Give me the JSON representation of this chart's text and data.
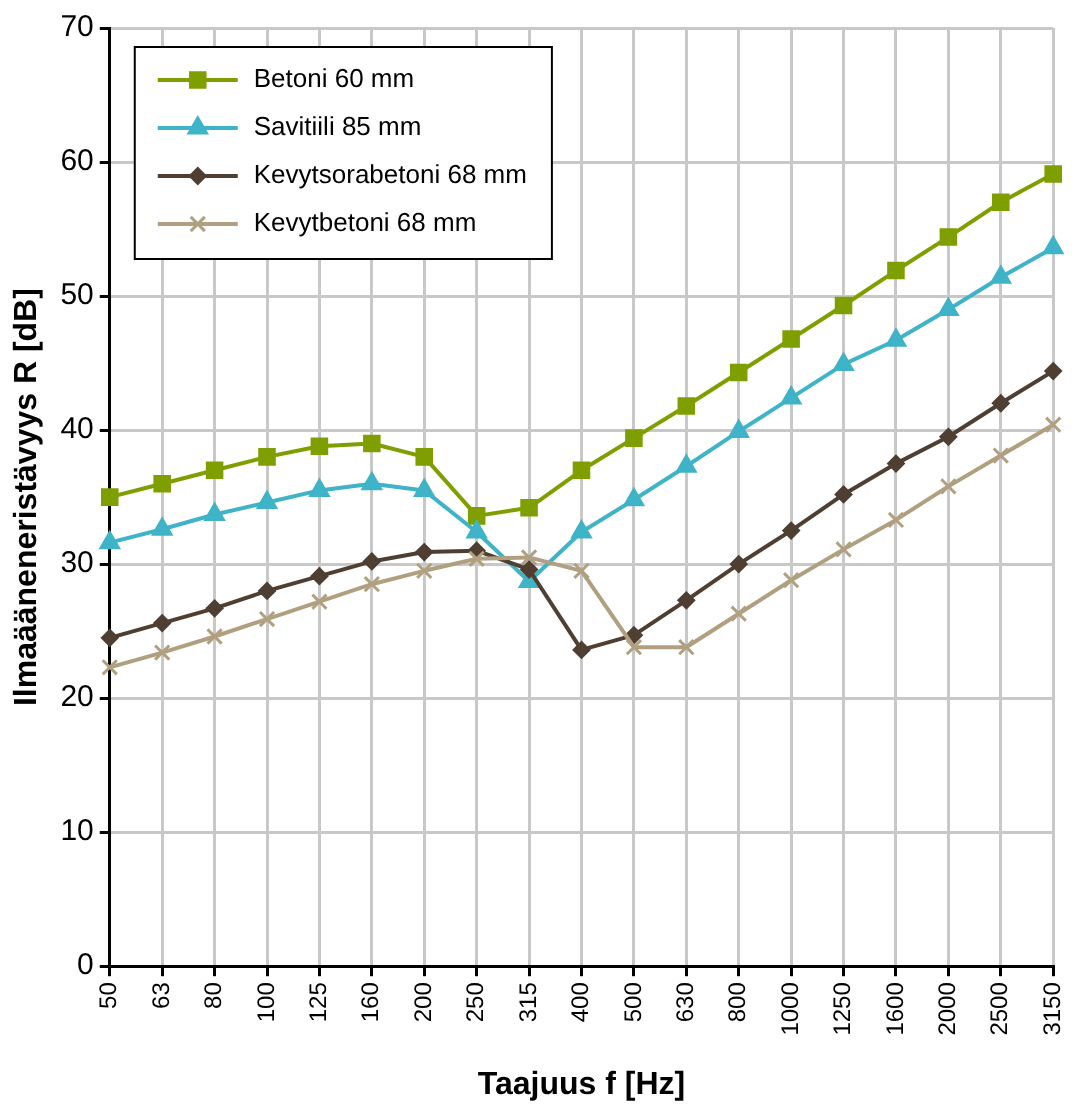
{
  "chart_data": {
    "type": "line",
    "xlabel": "Taajuus f [Hz]",
    "ylabel": "Ilmaääneneristävyys R [dB]",
    "categories": [
      "50",
      "63",
      "80",
      "100",
      "125",
      "160",
      "200",
      "250",
      "315",
      "400",
      "500",
      "630",
      "800",
      "1000",
      "1250",
      "1600",
      "2000",
      "2500",
      "3150"
    ],
    "ylim": [
      0,
      70
    ],
    "yticks": [
      0,
      10,
      20,
      30,
      40,
      50,
      60,
      70
    ],
    "grid": true,
    "legend": "top left",
    "line_style": "solid",
    "series": [
      {
        "name": "Betoni 60 mm",
        "color": "#7f9f00",
        "marker": "square",
        "values": [
          35,
          36,
          37,
          38,
          38.8,
          39,
          38,
          33.6,
          34.2,
          37,
          39.4,
          41.8,
          44.3,
          46.8,
          49.3,
          51.9,
          54.4,
          57,
          59.1
        ]
      },
      {
        "name": "Savitiili 85 mm",
        "color": "#3fb3c8",
        "marker": "triangle",
        "values": [
          31.6,
          32.6,
          33.7,
          34.6,
          35.5,
          36,
          35.5,
          32.4,
          28.7,
          32.4,
          34.8,
          37.3,
          39.9,
          42.4,
          44.9,
          46.7,
          49,
          51.4,
          53.6
        ]
      },
      {
        "name": "Kevytsorabetoni 68 mm",
        "color": "#4f3f33",
        "marker": "diamond",
        "values": [
          24.5,
          25.6,
          26.7,
          28,
          29.1,
          30.2,
          30.9,
          31,
          29.6,
          23.6,
          24.7,
          27.3,
          30,
          32.5,
          35.2,
          37.5,
          39.5,
          42,
          44.4
        ]
      },
      {
        "name": "Kevytbetoni 68 mm",
        "color": "#b0a080",
        "marker": "cross",
        "values": [
          22.3,
          23.4,
          24.6,
          25.9,
          27.2,
          28.5,
          29.5,
          30.4,
          30.5,
          29.5,
          23.8,
          23.8,
          26.3,
          28.8,
          31.1,
          33.3,
          35.8,
          38.1,
          40.4
        ]
      }
    ]
  }
}
